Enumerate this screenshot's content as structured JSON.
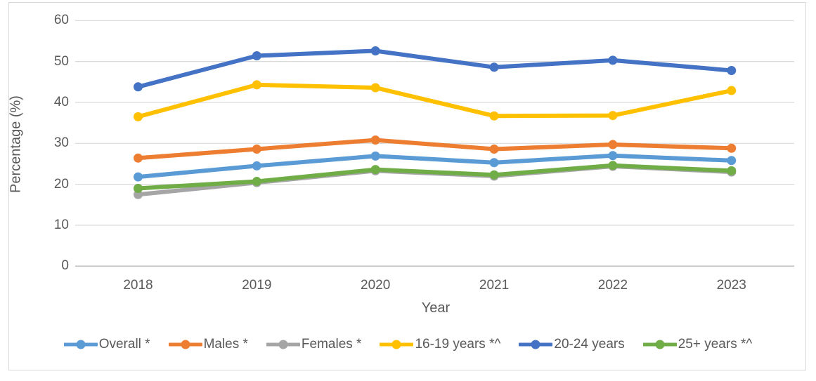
{
  "chart_data": {
    "type": "line",
    "x": [
      "2018",
      "2019",
      "2020",
      "2021",
      "2022",
      "2023"
    ],
    "xlabel": "Year",
    "ylabel": "Percentage (%)",
    "ylim": [
      0,
      60
    ],
    "yticks": [
      0,
      10,
      20,
      30,
      40,
      50,
      60
    ],
    "grid": true,
    "legend_position": "bottom",
    "series": [
      {
        "name": "Overall *",
        "color": "#5B9BD5",
        "values": [
          21.8,
          24.5,
          26.9,
          25.3,
          27.0,
          25.8
        ]
      },
      {
        "name": "Males *",
        "color": "#ED7D31",
        "values": [
          26.4,
          28.6,
          30.8,
          28.6,
          29.7,
          28.8
        ]
      },
      {
        "name": "Females *",
        "color": "#A5A5A5",
        "values": [
          17.5,
          20.4,
          23.3,
          22.0,
          24.4,
          23.0
        ]
      },
      {
        "name": "16-19 years *^",
        "color": "#FFC000",
        "values": [
          36.5,
          44.3,
          43.6,
          36.7,
          36.8,
          42.9
        ]
      },
      {
        "name": "20-24 years",
        "color": "#4472C4",
        "values": [
          43.8,
          51.4,
          52.6,
          48.6,
          50.3,
          47.8
        ]
      },
      {
        "name": "25+ years *^",
        "color": "#70AD47",
        "values": [
          19.0,
          20.7,
          23.6,
          22.3,
          24.6,
          23.3
        ]
      }
    ]
  },
  "colors": {
    "background": "#FFFFFF",
    "text": "#595959",
    "gridline": "#D9D9D9",
    "axis_line": "#BFBFBF",
    "frame_border": "#D9D9D9"
  }
}
